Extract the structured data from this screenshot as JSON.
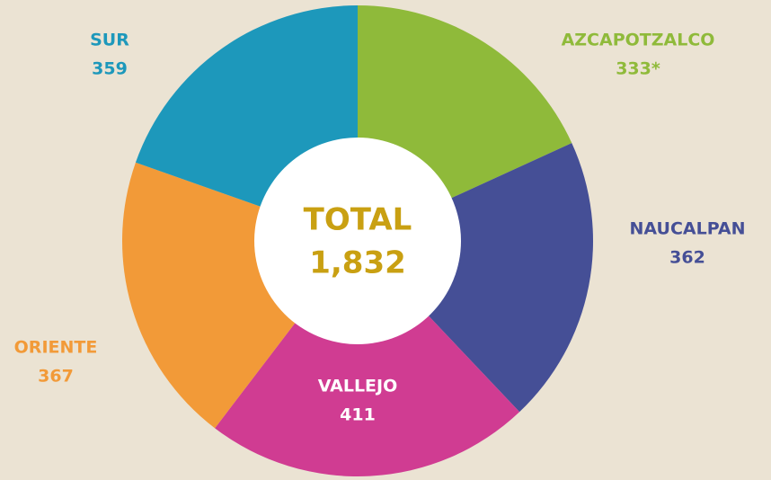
{
  "chart_data": {
    "type": "pie",
    "categories": [
      "AZCAPOTZALCO",
      "NAUCALPAN",
      "VALLEJO",
      "ORIENTE",
      "SUR"
    ],
    "values": [
      333,
      362,
      411,
      367,
      359
    ],
    "value_labels": [
      "333*",
      "362",
      "411",
      "367",
      "359"
    ],
    "colors": [
      "#8fba3a",
      "#454f96",
      "#d03c92",
      "#f29a38",
      "#1d98bb"
    ],
    "center_title": "TOTAL",
    "center_value": "1,832"
  }
}
